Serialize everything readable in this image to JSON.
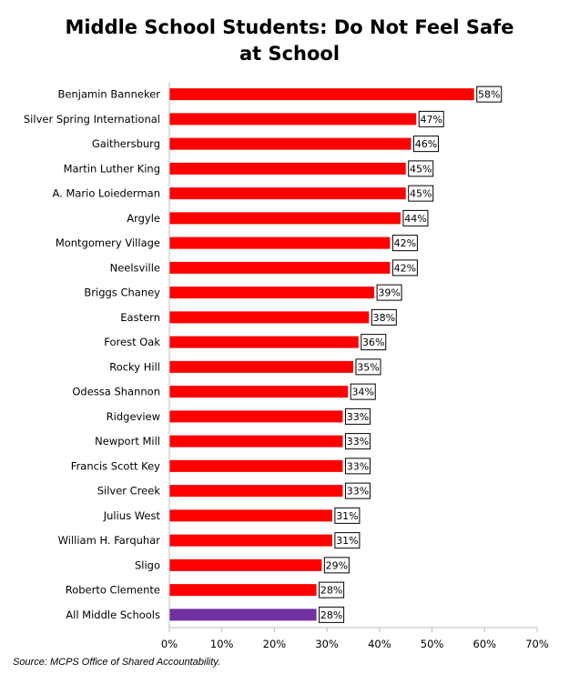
{
  "chart_data": {
    "type": "bar",
    "orientation": "horizontal",
    "title_lines": [
      "Middle School Students: Do Not Feel Safe",
      "at School"
    ],
    "categories": [
      "Benjamin Banneker",
      "Silver Spring International",
      "Gaithersburg",
      "Martin Luther King",
      "A. Mario Loiederman",
      "Argyle",
      "Montgomery Village",
      "Neelsville",
      "Briggs Chaney",
      "Eastern",
      "Forest Oak",
      "Rocky Hill",
      "Odessa Shannon",
      "Ridgeview",
      "Newport Mill",
      "Francis Scott Key",
      "Silver Creek",
      "Julius West",
      "William H. Farquhar",
      "Sligo",
      "Roberto Clemente",
      "All Middle Schools"
    ],
    "values": [
      58,
      47,
      46,
      45,
      45,
      44,
      42,
      42,
      39,
      38,
      36,
      35,
      34,
      33,
      33,
      33,
      33,
      31,
      31,
      29,
      28,
      28
    ],
    "data_labels": [
      "58%",
      "47%",
      "46%",
      "45%",
      "45%",
      "44%",
      "42%",
      "42%",
      "39%",
      "38%",
      "36%",
      "35%",
      "34%",
      "33%",
      "33%",
      "33%",
      "33%",
      "31%",
      "31%",
      "29%",
      "28%",
      "28%"
    ],
    "xlim": [
      0,
      70
    ],
    "x_ticks": [
      0,
      10,
      20,
      30,
      40,
      50,
      60,
      70
    ],
    "x_tick_labels": [
      "0%",
      "10%",
      "20%",
      "30%",
      "40%",
      "50%",
      "60%",
      "70%"
    ],
    "grid": false,
    "legend": "none",
    "colors": {
      "bar": "#ff0000",
      "highlight": "#7030a0",
      "highlight_category": "All Middle Schools"
    }
  },
  "source": "Source: MCPS Office of Shared Accountability."
}
